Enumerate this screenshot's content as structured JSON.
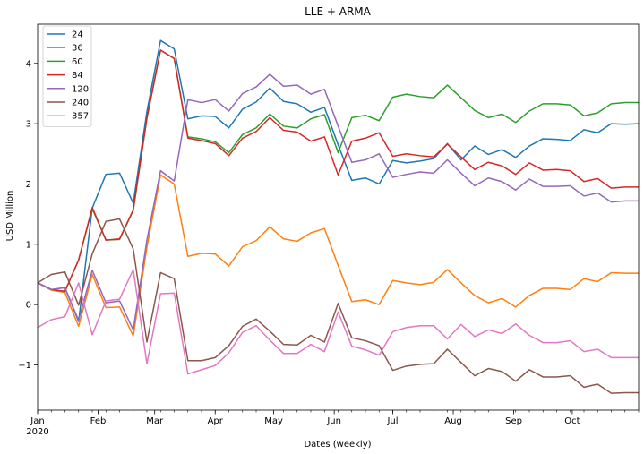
{
  "chart_data": {
    "type": "line",
    "title": "LLE + ARMA",
    "xlabel": "Dates (weekly)",
    "ylabel": "USD Million",
    "ylim": [
      -1.75,
      4.65
    ],
    "xlim": [
      "2020-01-01",
      "2020-11-04"
    ],
    "yticks": [
      -1,
      0,
      1,
      2,
      3,
      4
    ],
    "xticks": [
      {
        "date": "2020-01-01",
        "label": "Jan",
        "sublabel": "2020"
      },
      {
        "date": "2020-02-01",
        "label": "Feb",
        "sublabel": ""
      },
      {
        "date": "2020-03-01",
        "label": "Mar",
        "sublabel": ""
      },
      {
        "date": "2020-04-01",
        "label": "Apr",
        "sublabel": ""
      },
      {
        "date": "2020-05-01",
        "label": "May",
        "sublabel": ""
      },
      {
        "date": "2020-06-01",
        "label": "Jun",
        "sublabel": ""
      },
      {
        "date": "2020-07-01",
        "label": "Jul",
        "sublabel": ""
      },
      {
        "date": "2020-08-01",
        "label": "Aug",
        "sublabel": ""
      },
      {
        "date": "2020-09-01",
        "label": "Sep",
        "sublabel": ""
      },
      {
        "date": "2020-10-01",
        "label": "Oct",
        "sublabel": ""
      }
    ],
    "grid": false,
    "legend": "top-left",
    "x": [
      "2020-01-01",
      "2020-01-08",
      "2020-01-15",
      "2020-01-22",
      "2020-01-29",
      "2020-02-05",
      "2020-02-12",
      "2020-02-19",
      "2020-02-26",
      "2020-03-04",
      "2020-03-11",
      "2020-03-18",
      "2020-03-25",
      "2020-04-01",
      "2020-04-08",
      "2020-04-15",
      "2020-04-22",
      "2020-04-29",
      "2020-05-06",
      "2020-05-13",
      "2020-05-20",
      "2020-05-27",
      "2020-06-03",
      "2020-06-10",
      "2020-06-17",
      "2020-06-24",
      "2020-07-01",
      "2020-07-08",
      "2020-07-15",
      "2020-07-22",
      "2020-07-29",
      "2020-08-05",
      "2020-08-12",
      "2020-08-19",
      "2020-08-26",
      "2020-09-02",
      "2020-09-09",
      "2020-09-16",
      "2020-09-23",
      "2020-09-30",
      "2020-10-07",
      "2020-10-14",
      "2020-10-21",
      "2020-10-28",
      "2020-11-04"
    ],
    "series": [
      {
        "name": "24",
        "color": "#1f77b4",
        "values": [
          0.36,
          0.25,
          0.28,
          -0.28,
          1.6,
          2.16,
          2.18,
          1.68,
          3.2,
          4.38,
          4.24,
          3.08,
          3.13,
          3.12,
          2.93,
          3.24,
          3.36,
          3.59,
          3.37,
          3.33,
          3.19,
          3.27,
          2.65,
          2.06,
          2.1,
          2.0,
          2.39,
          2.35,
          2.38,
          2.42,
          2.67,
          2.4,
          2.63,
          2.49,
          2.57,
          2.44,
          2.63,
          2.75,
          2.74,
          2.72,
          2.9,
          2.85,
          3.0,
          2.99,
          3.0
        ]
      },
      {
        "name": "36",
        "color": "#ff7f0e",
        "values": [
          0.36,
          0.24,
          0.2,
          -0.36,
          0.5,
          -0.05,
          -0.04,
          -0.52,
          0.95,
          2.15,
          2.0,
          0.8,
          0.85,
          0.84,
          0.64,
          0.96,
          1.06,
          1.29,
          1.09,
          1.05,
          1.19,
          1.26,
          0.65,
          0.05,
          0.08,
          0.0,
          0.4,
          0.36,
          0.33,
          0.37,
          0.58,
          0.36,
          0.15,
          0.03,
          0.1,
          -0.04,
          0.15,
          0.27,
          0.27,
          0.25,
          0.43,
          0.38,
          0.53,
          0.52,
          0.52
        ]
      },
      {
        "name": "60",
        "color": "#2ca02c",
        "values": [
          0.36,
          0.25,
          0.22,
          0.74,
          1.59,
          1.07,
          1.08,
          1.56,
          3.09,
          4.22,
          4.08,
          2.78,
          2.75,
          2.7,
          2.52,
          2.82,
          2.93,
          3.16,
          2.96,
          2.93,
          3.08,
          3.15,
          2.52,
          3.1,
          3.14,
          3.05,
          3.44,
          3.49,
          3.45,
          3.43,
          3.64,
          3.43,
          3.22,
          3.1,
          3.16,
          3.02,
          3.21,
          3.33,
          3.33,
          3.31,
          3.13,
          3.18,
          3.33,
          3.35,
          3.35
        ]
      },
      {
        "name": "84",
        "color": "#d62728",
        "values": [
          0.36,
          0.25,
          0.22,
          0.74,
          1.61,
          1.07,
          1.09,
          1.57,
          3.09,
          4.22,
          4.08,
          2.76,
          2.72,
          2.67,
          2.47,
          2.76,
          2.87,
          3.1,
          2.89,
          2.86,
          2.71,
          2.78,
          2.15,
          2.71,
          2.76,
          2.85,
          2.46,
          2.5,
          2.47,
          2.45,
          2.66,
          2.45,
          2.24,
          2.36,
          2.3,
          2.16,
          2.35,
          2.23,
          2.24,
          2.22,
          2.04,
          2.09,
          1.93,
          1.95,
          1.95
        ]
      },
      {
        "name": "120",
        "color": "#9467bd",
        "values": [
          0.36,
          0.25,
          0.28,
          -0.26,
          0.57,
          0.03,
          0.06,
          -0.42,
          1.07,
          2.22,
          2.05,
          3.4,
          3.35,
          3.4,
          3.21,
          3.5,
          3.61,
          3.82,
          3.62,
          3.64,
          3.49,
          3.57,
          2.96,
          2.36,
          2.4,
          2.5,
          2.11,
          2.16,
          2.2,
          2.18,
          2.4,
          2.18,
          1.97,
          2.1,
          2.04,
          1.9,
          2.08,
          1.96,
          1.96,
          1.97,
          1.8,
          1.85,
          1.7,
          1.72,
          1.72
        ]
      },
      {
        "name": "240",
        "color": "#8c564b",
        "values": [
          0.36,
          0.5,
          0.54,
          -0.01,
          0.84,
          1.38,
          1.42,
          0.92,
          -0.62,
          0.53,
          0.43,
          -0.93,
          -0.93,
          -0.88,
          -0.68,
          -0.36,
          -0.24,
          -0.44,
          -0.66,
          -0.67,
          -0.51,
          -0.62,
          0.02,
          -0.55,
          -0.6,
          -0.68,
          -1.09,
          -1.02,
          -0.99,
          -0.98,
          -0.74,
          -0.96,
          -1.18,
          -1.06,
          -1.11,
          -1.27,
          -1.08,
          -1.2,
          -1.2,
          -1.18,
          -1.37,
          -1.32,
          -1.47,
          -1.46,
          -1.46
        ]
      },
      {
        "name": "357",
        "color": "#e377c2",
        "values": [
          -0.38,
          -0.25,
          -0.2,
          0.36,
          -0.5,
          0.06,
          0.09,
          0.58,
          -0.98,
          0.18,
          0.19,
          -1.15,
          -1.08,
          -1.01,
          -0.8,
          -0.46,
          -0.35,
          -0.59,
          -0.81,
          -0.81,
          -0.66,
          -0.78,
          -0.12,
          -0.69,
          -0.75,
          -0.84,
          -0.45,
          -0.38,
          -0.35,
          -0.35,
          -0.57,
          -0.33,
          -0.53,
          -0.42,
          -0.48,
          -0.32,
          -0.51,
          -0.63,
          -0.63,
          -0.6,
          -0.78,
          -0.74,
          -0.88,
          -0.88,
          -0.88
        ]
      }
    ]
  }
}
